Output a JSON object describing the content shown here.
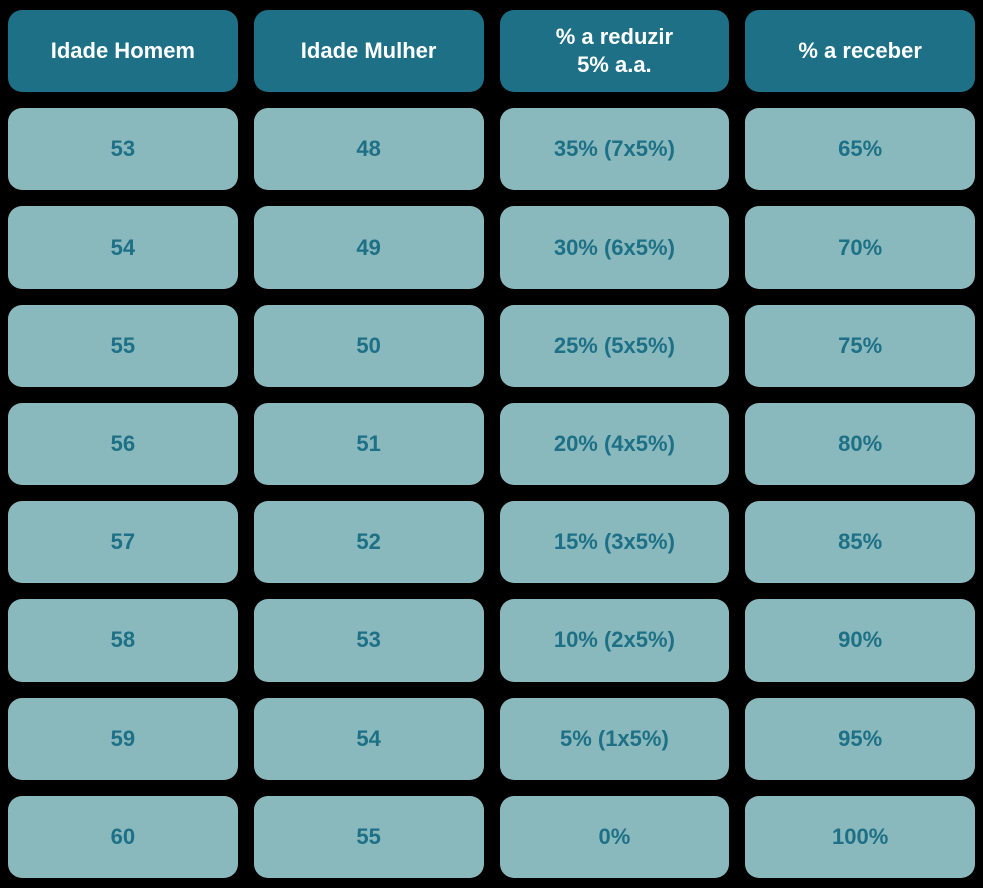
{
  "table": {
    "type": "table",
    "columns": [
      "Idade Homem",
      "Idade Mulher",
      "% a reduzir\n5% a.a.",
      "% a receber"
    ],
    "rows": [
      [
        "53",
        "48",
        "35% (7x5%)",
        "65%"
      ],
      [
        "54",
        "49",
        "30% (6x5%)",
        "70%"
      ],
      [
        "55",
        "50",
        "25% (5x5%)",
        "75%"
      ],
      [
        "56",
        "51",
        "20% (4x5%)",
        "80%"
      ],
      [
        "57",
        "52",
        "15% (3x5%)",
        "85%"
      ],
      [
        "58",
        "53",
        "10% (2x5%)",
        "90%"
      ],
      [
        "59",
        "54",
        "5% (1x5%)",
        "95%"
      ],
      [
        "60",
        "55",
        "0%",
        "100%"
      ]
    ],
    "header_bg_color": "#1d7086",
    "header_text_color": "#ffffff",
    "data_bg_color": "#8ab9bd",
    "data_text_color": "#1d7086",
    "background_color": "#000000",
    "border_radius": 14,
    "font_size": 22,
    "font_weight": "bold",
    "gap": 16
  }
}
